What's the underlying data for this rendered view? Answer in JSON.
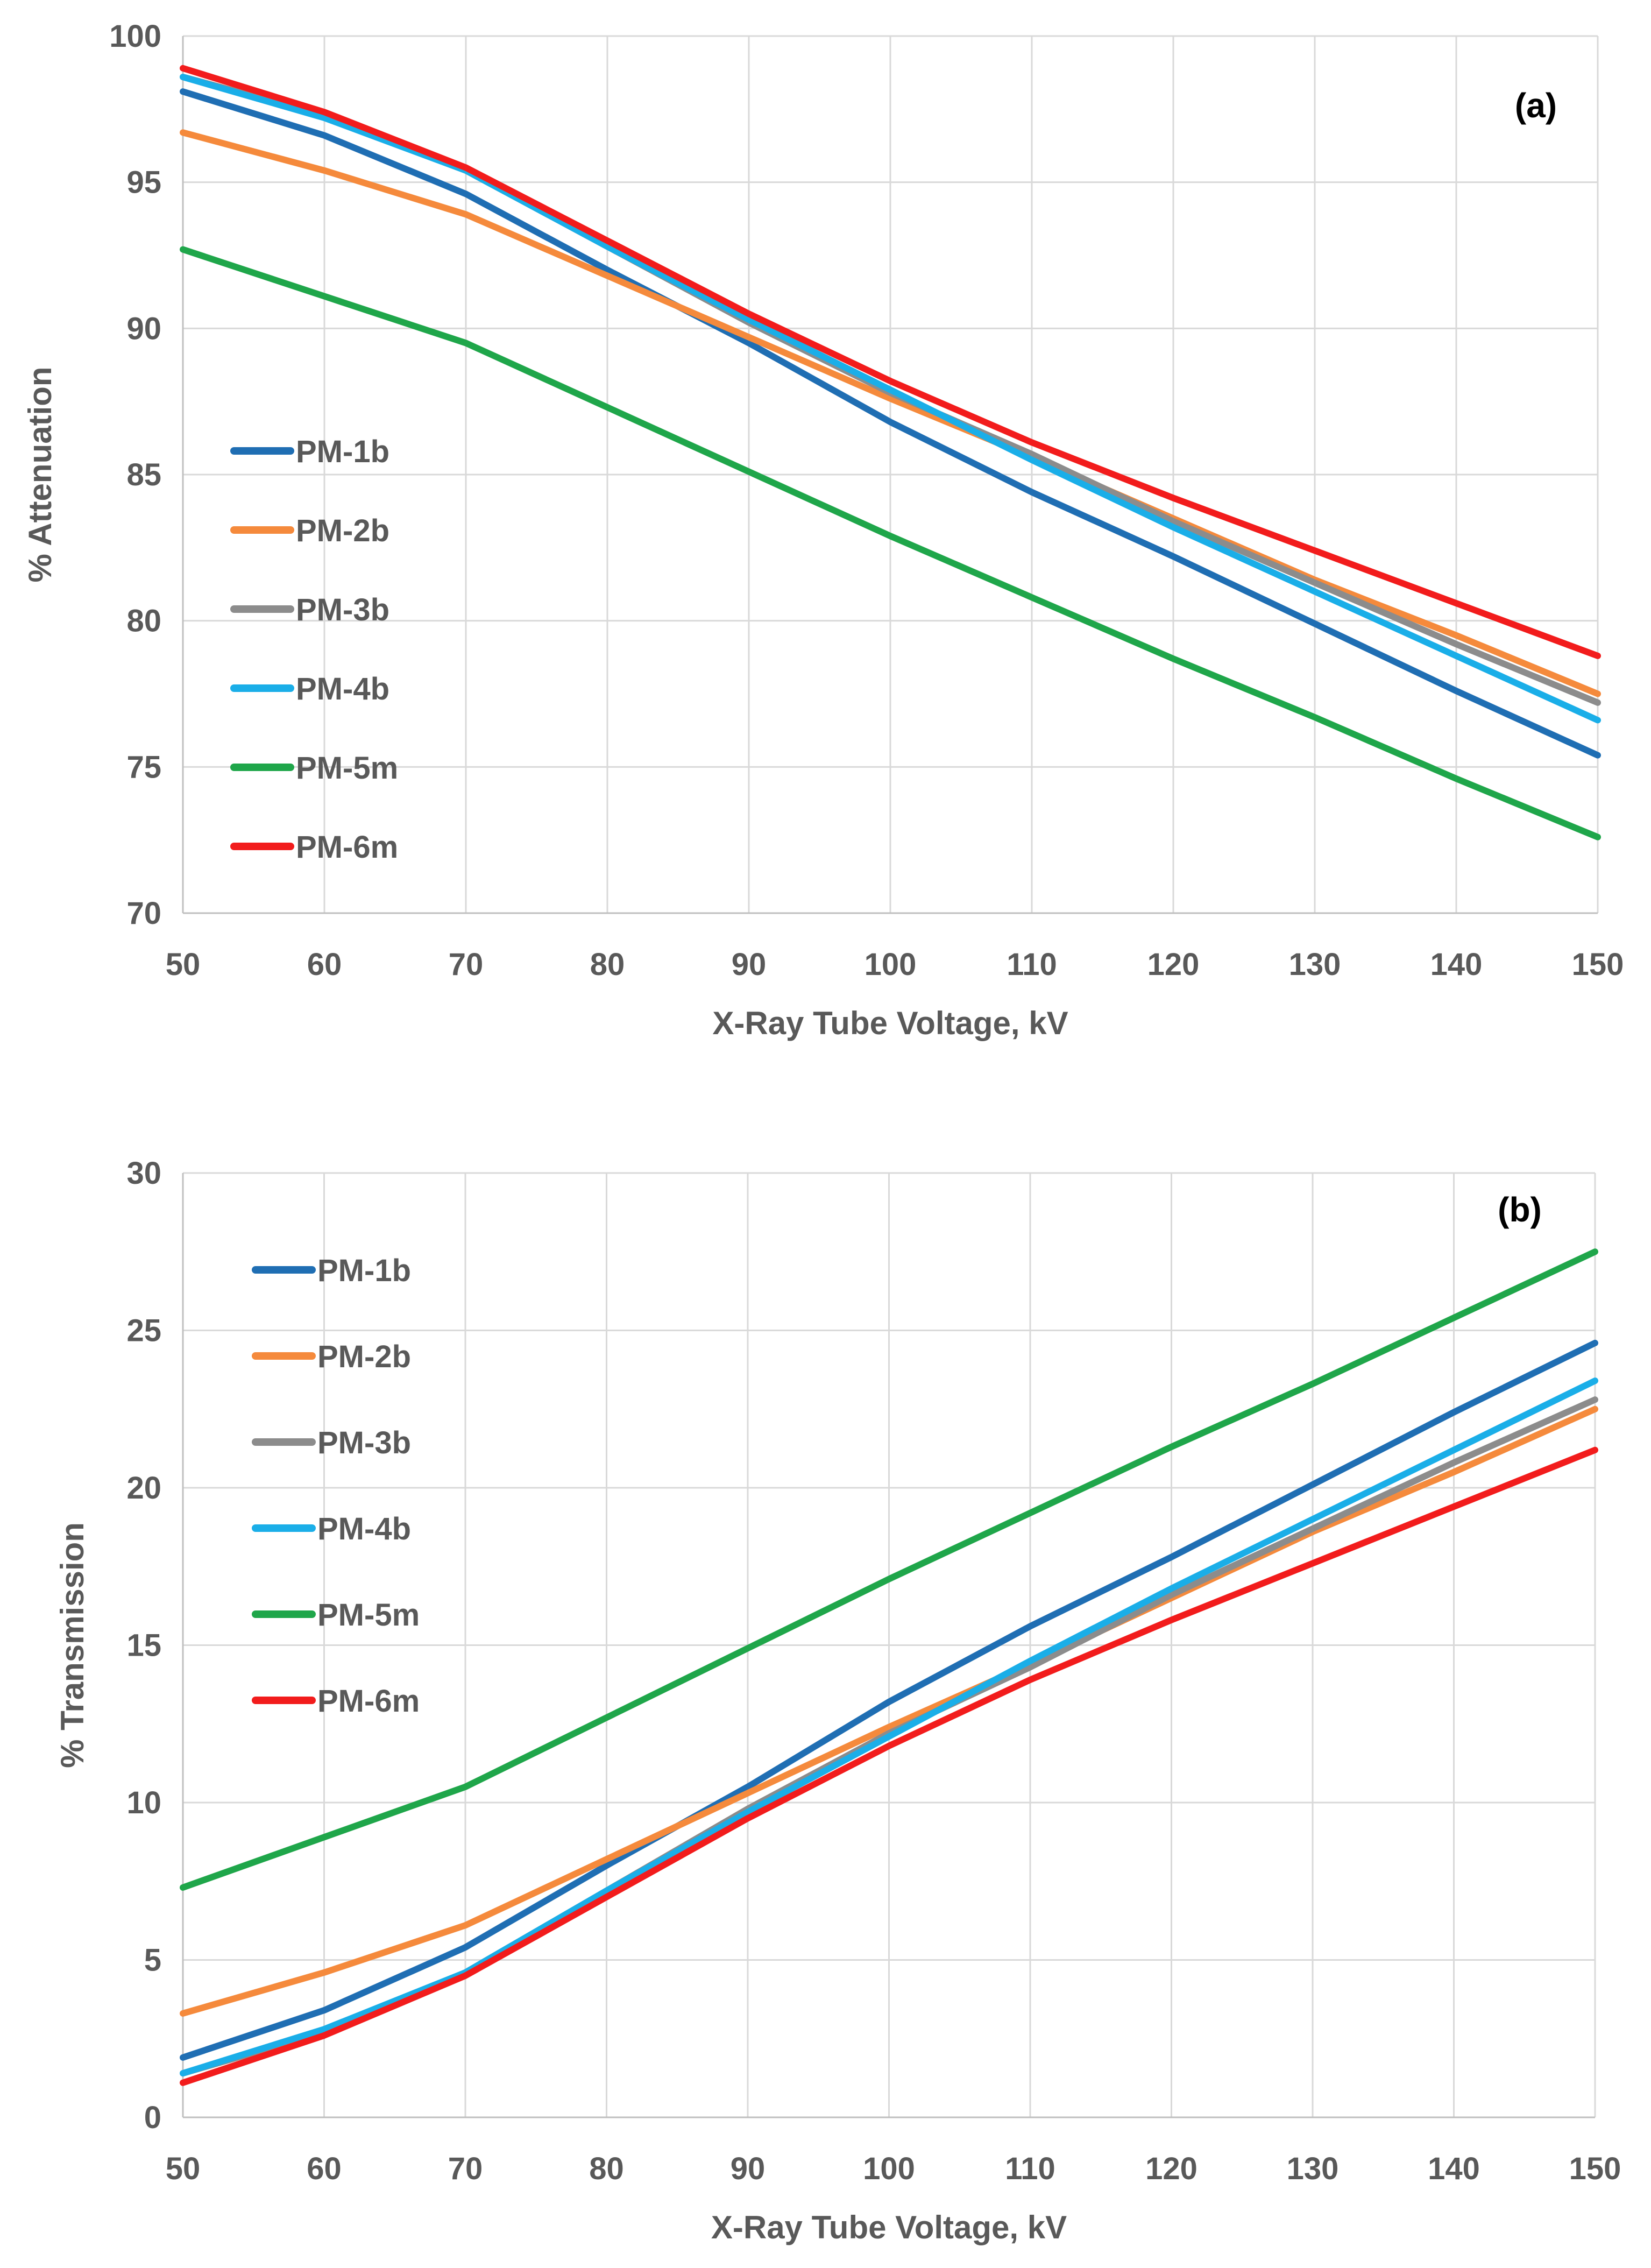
{
  "chart_data": [
    {
      "type": "line",
      "panel_label": "(a)",
      "title": "",
      "xlabel": "X-Ray Tube Voltage, kV",
      "ylabel": "% Attenuation",
      "xlim": [
        50,
        150
      ],
      "ylim": [
        70,
        100
      ],
      "x_ticks": [
        50,
        60,
        70,
        80,
        90,
        100,
        110,
        120,
        130,
        140,
        150
      ],
      "y_ticks": [
        70,
        75,
        80,
        85,
        90,
        95,
        100
      ],
      "grid": true,
      "legend_position": "middle-left",
      "x": [
        50,
        60,
        70,
        80,
        90,
        100,
        110,
        120,
        130,
        140,
        150
      ],
      "series": [
        {
          "name": "PM-1b",
          "color": "#1F6EB3",
          "values": [
            98.1,
            96.6,
            94.6,
            92.0,
            89.5,
            86.8,
            84.4,
            82.2,
            79.9,
            77.6,
            75.4
          ]
        },
        {
          "name": "PM-2b",
          "color": "#F58A3C",
          "values": [
            96.7,
            95.4,
            93.9,
            91.8,
            89.7,
            87.6,
            85.6,
            83.5,
            81.4,
            79.5,
            77.5
          ]
        },
        {
          "name": "PM-3b",
          "color": "#8C8C8C",
          "values": [
            98.6,
            97.3,
            95.4,
            92.8,
            90.2,
            87.8,
            85.7,
            83.4,
            81.3,
            79.2,
            77.2
          ]
        },
        {
          "name": "PM-4b",
          "color": "#1AAEE8",
          "values": [
            98.6,
            97.2,
            95.4,
            92.8,
            90.3,
            87.9,
            85.5,
            83.2,
            81.0,
            78.8,
            76.6
          ]
        },
        {
          "name": "PM-5m",
          "color": "#1FA64A",
          "values": [
            92.7,
            91.1,
            89.5,
            87.3,
            85.1,
            82.9,
            80.8,
            78.7,
            76.7,
            74.6,
            72.6
          ]
        },
        {
          "name": "PM-6m",
          "color": "#F21C1C",
          "values": [
            98.9,
            97.4,
            95.5,
            93.0,
            90.5,
            88.2,
            86.1,
            84.2,
            82.4,
            80.6,
            78.8
          ]
        }
      ]
    },
    {
      "type": "line",
      "panel_label": "(b)",
      "title": "",
      "xlabel": "X-Ray Tube Voltage, kV",
      "ylabel": "% Transmission",
      "xlim": [
        50,
        150
      ],
      "ylim": [
        0,
        30
      ],
      "x_ticks": [
        50,
        60,
        70,
        80,
        90,
        100,
        110,
        120,
        130,
        140,
        150
      ],
      "y_ticks": [
        0,
        5,
        10,
        15,
        20,
        25,
        30
      ],
      "grid": true,
      "legend_position": "top-left",
      "x": [
        50,
        60,
        70,
        80,
        90,
        100,
        110,
        120,
        130,
        140,
        150
      ],
      "series": [
        {
          "name": "PM-1b",
          "color": "#1F6EB3",
          "values": [
            1.9,
            3.4,
            5.4,
            8.0,
            10.5,
            13.2,
            15.6,
            17.8,
            20.1,
            22.4,
            24.6
          ]
        },
        {
          "name": "PM-2b",
          "color": "#F58A3C",
          "values": [
            3.3,
            4.6,
            6.1,
            8.2,
            10.3,
            12.4,
            14.4,
            16.5,
            18.6,
            20.5,
            22.5
          ]
        },
        {
          "name": "PM-3b",
          "color": "#8C8C8C",
          "values": [
            1.4,
            2.7,
            4.6,
            7.2,
            9.8,
            12.2,
            14.3,
            16.6,
            18.7,
            20.8,
            22.8
          ]
        },
        {
          "name": "PM-4b",
          "color": "#1AAEE8",
          "values": [
            1.4,
            2.8,
            4.6,
            7.2,
            9.7,
            12.1,
            14.5,
            16.8,
            19.0,
            21.2,
            23.4
          ]
        },
        {
          "name": "PM-5m",
          "color": "#1FA64A",
          "values": [
            7.3,
            8.9,
            10.5,
            12.7,
            14.9,
            17.1,
            19.2,
            21.3,
            23.3,
            25.4,
            27.5
          ]
        },
        {
          "name": "PM-6m",
          "color": "#F21C1C",
          "values": [
            1.1,
            2.6,
            4.5,
            7.0,
            9.5,
            11.8,
            13.9,
            15.8,
            17.6,
            19.4,
            21.2
          ]
        }
      ]
    }
  ]
}
